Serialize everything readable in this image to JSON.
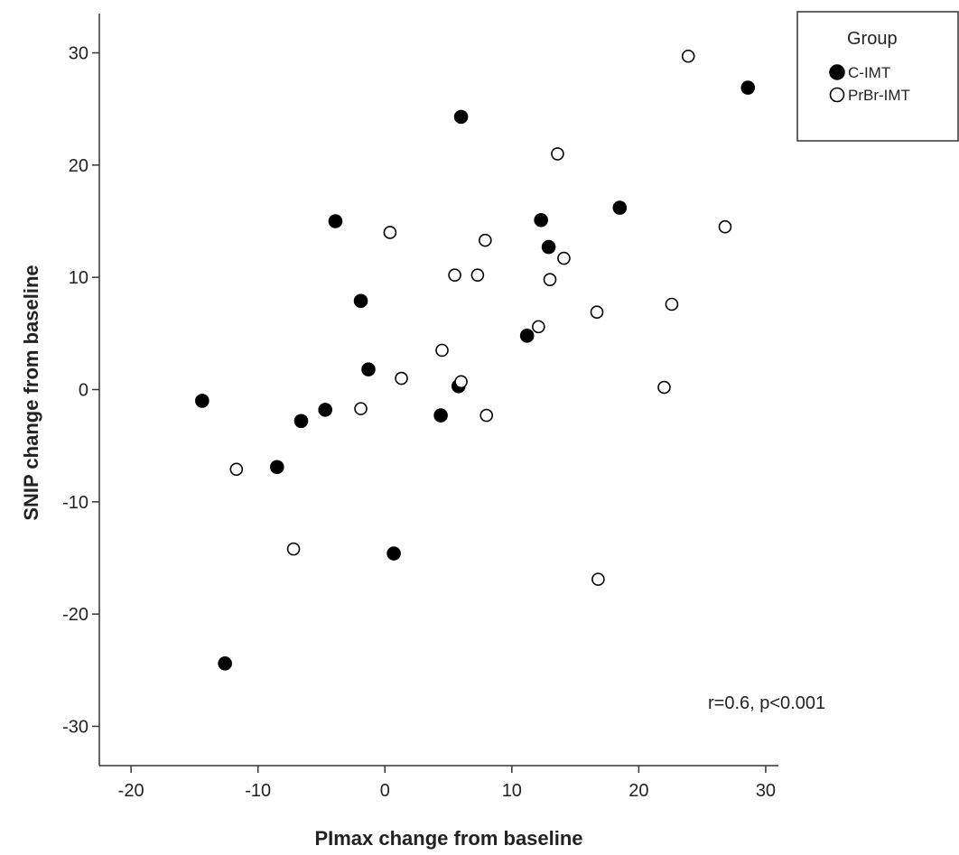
{
  "chart_data": {
    "type": "scatter",
    "xlabel": "PImax change from baseline",
    "ylabel": "SNIP change from baseline",
    "xlim": [
      -22.5,
      31
    ],
    "ylim": [
      -33.5,
      33.5
    ],
    "xticks": [
      -20,
      -10,
      0,
      10,
      20,
      30
    ],
    "yticks": [
      30,
      20,
      10,
      0,
      -10,
      -20,
      -30
    ],
    "grid": false,
    "legend": {
      "title": "Group",
      "placement": "top-right"
    },
    "annotation": "r=0.6, p<0.001",
    "series": [
      {
        "name": "C-IMT",
        "marker": "filled-circle",
        "color": "#000000",
        "points": [
          [
            28.6,
            26.9
          ],
          [
            6.0,
            24.3
          ],
          [
            18.5,
            16.2
          ],
          [
            -3.9,
            15.0
          ],
          [
            12.3,
            15.1
          ],
          [
            12.9,
            12.7
          ],
          [
            -1.9,
            7.9
          ],
          [
            11.2,
            4.8
          ],
          [
            -1.3,
            1.8
          ],
          [
            5.8,
            0.3
          ],
          [
            -14.4,
            -1.0
          ],
          [
            -4.7,
            -1.8
          ],
          [
            -6.6,
            -2.8
          ],
          [
            4.4,
            -2.3
          ],
          [
            -8.5,
            -6.9
          ],
          [
            0.7,
            -14.6
          ],
          [
            -12.6,
            -24.4
          ]
        ]
      },
      {
        "name": "PrBr-IMT",
        "marker": "open-circle",
        "color": "#000000",
        "points": [
          [
            23.9,
            29.7
          ],
          [
            13.6,
            21.0
          ],
          [
            26.8,
            14.5
          ],
          [
            0.4,
            14.0
          ],
          [
            7.9,
            13.3
          ],
          [
            14.1,
            11.7
          ],
          [
            5.5,
            10.2
          ],
          [
            7.3,
            10.2
          ],
          [
            13.0,
            9.8
          ],
          [
            22.6,
            7.6
          ],
          [
            16.7,
            6.9
          ],
          [
            12.1,
            5.6
          ],
          [
            4.5,
            3.5
          ],
          [
            1.3,
            1.0
          ],
          [
            6.0,
            0.7
          ],
          [
            22.0,
            0.2
          ],
          [
            -1.9,
            -1.7
          ],
          [
            8.0,
            -2.3
          ],
          [
            -11.7,
            -7.1
          ],
          [
            -7.2,
            -14.2
          ],
          [
            16.8,
            -16.9
          ]
        ]
      }
    ]
  }
}
